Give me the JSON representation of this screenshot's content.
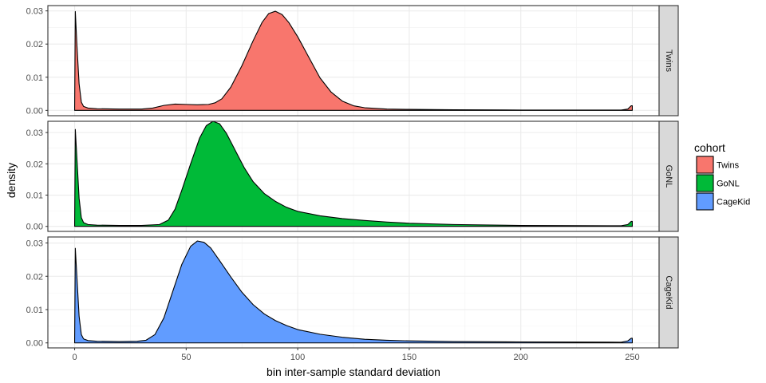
{
  "chart_data": {
    "type": "area",
    "xlabel": "bin inter-sample standard deviation",
    "ylabel": "density",
    "xlim": [
      -12,
      262
    ],
    "x_ticks": [
      0,
      50,
      100,
      150,
      200,
      250
    ],
    "y_ticks": [
      0.0,
      0.01,
      0.02,
      0.03
    ],
    "y_tick_labels": [
      "0.00",
      "0.01",
      "0.02",
      "0.03"
    ],
    "grid": true,
    "legend": {
      "title": "cohort",
      "position": "right"
    },
    "series": [
      {
        "name": "Twins",
        "color": "#F8766D",
        "ylim": [
          -0.0016,
          0.0316
        ],
        "points": [
          [
            0,
            0.0007
          ],
          [
            0.3,
            0.0298
          ],
          [
            1,
            0.02
          ],
          [
            2,
            0.008
          ],
          [
            3,
            0.0025
          ],
          [
            4,
            0.0012
          ],
          [
            6,
            0.0007
          ],
          [
            10,
            0.0005
          ],
          [
            20,
            0.0004
          ],
          [
            30,
            0.0004
          ],
          [
            35,
            0.0007
          ],
          [
            40,
            0.0015
          ],
          [
            45,
            0.0019
          ],
          [
            50,
            0.0018
          ],
          [
            55,
            0.0017
          ],
          [
            60,
            0.0018
          ],
          [
            63,
            0.0023
          ],
          [
            66,
            0.0035
          ],
          [
            70,
            0.007
          ],
          [
            75,
            0.0135
          ],
          [
            80,
            0.021
          ],
          [
            84,
            0.0265
          ],
          [
            87,
            0.0292
          ],
          [
            90,
            0.0299
          ],
          [
            93,
            0.0289
          ],
          [
            96,
            0.0265
          ],
          [
            100,
            0.0222
          ],
          [
            105,
            0.016
          ],
          [
            110,
            0.0098
          ],
          [
            115,
            0.0055
          ],
          [
            120,
            0.0028
          ],
          [
            125,
            0.0014
          ],
          [
            130,
            0.0008
          ],
          [
            140,
            0.0004
          ],
          [
            150,
            0.0003
          ],
          [
            170,
            0.0002
          ],
          [
            200,
            0.0001
          ],
          [
            245,
            0.0001
          ],
          [
            248,
            0.0004
          ],
          [
            249.5,
            0.0014
          ],
          [
            250,
            0.0014
          ]
        ]
      },
      {
        "name": "GoNL",
        "color": "#00BA38",
        "ylim": [
          -0.0016,
          0.0336
        ],
        "points": [
          [
            0,
            0.0008
          ],
          [
            0.3,
            0.031
          ],
          [
            1,
            0.022
          ],
          [
            2,
            0.009
          ],
          [
            3,
            0.0028
          ],
          [
            4,
            0.0012
          ],
          [
            6,
            0.0006
          ],
          [
            10,
            0.0004
          ],
          [
            20,
            0.0003
          ],
          [
            30,
            0.0003
          ],
          [
            38,
            0.0006
          ],
          [
            42,
            0.002
          ],
          [
            45,
            0.0055
          ],
          [
            48,
            0.0115
          ],
          [
            52,
            0.02
          ],
          [
            56,
            0.0282
          ],
          [
            59,
            0.0322
          ],
          [
            62,
            0.0336
          ],
          [
            65,
            0.0328
          ],
          [
            68,
            0.0298
          ],
          [
            72,
            0.0243
          ],
          [
            76,
            0.0188
          ],
          [
            80,
            0.0143
          ],
          [
            85,
            0.0105
          ],
          [
            90,
            0.008
          ],
          [
            95,
            0.0061
          ],
          [
            100,
            0.0048
          ],
          [
            110,
            0.0034
          ],
          [
            120,
            0.0025
          ],
          [
            130,
            0.0019
          ],
          [
            140,
            0.0014
          ],
          [
            150,
            0.001
          ],
          [
            170,
            0.0006
          ],
          [
            200,
            0.0003
          ],
          [
            245,
            0.0002
          ],
          [
            248,
            0.0006
          ],
          [
            249.5,
            0.0016
          ],
          [
            250,
            0.0016
          ]
        ]
      },
      {
        "name": "CageKid",
        "color": "#619CFF",
        "ylim": [
          -0.0015,
          0.0318
        ],
        "points": [
          [
            0,
            0.0008
          ],
          [
            0.3,
            0.0284
          ],
          [
            1,
            0.02
          ],
          [
            2,
            0.008
          ],
          [
            3,
            0.0025
          ],
          [
            4,
            0.0012
          ],
          [
            6,
            0.0007
          ],
          [
            10,
            0.0005
          ],
          [
            20,
            0.0004
          ],
          [
            28,
            0.0005
          ],
          [
            32,
            0.0008
          ],
          [
            36,
            0.0025
          ],
          [
            40,
            0.0075
          ],
          [
            44,
            0.0155
          ],
          [
            48,
            0.0235
          ],
          [
            52,
            0.029
          ],
          [
            55,
            0.0306
          ],
          [
            58,
            0.0302
          ],
          [
            61,
            0.0285
          ],
          [
            65,
            0.0247
          ],
          [
            70,
            0.0198
          ],
          [
            75,
            0.0152
          ],
          [
            80,
            0.0115
          ],
          [
            85,
            0.0087
          ],
          [
            90,
            0.0067
          ],
          [
            95,
            0.0052
          ],
          [
            100,
            0.004
          ],
          [
            110,
            0.0026
          ],
          [
            120,
            0.0017
          ],
          [
            130,
            0.0011
          ],
          [
            140,
            0.0008
          ],
          [
            150,
            0.0006
          ],
          [
            170,
            0.0004
          ],
          [
            200,
            0.0003
          ],
          [
            245,
            0.0002
          ],
          [
            248,
            0.0006
          ],
          [
            249.5,
            0.0014
          ],
          [
            250,
            0.0014
          ]
        ]
      }
    ]
  }
}
